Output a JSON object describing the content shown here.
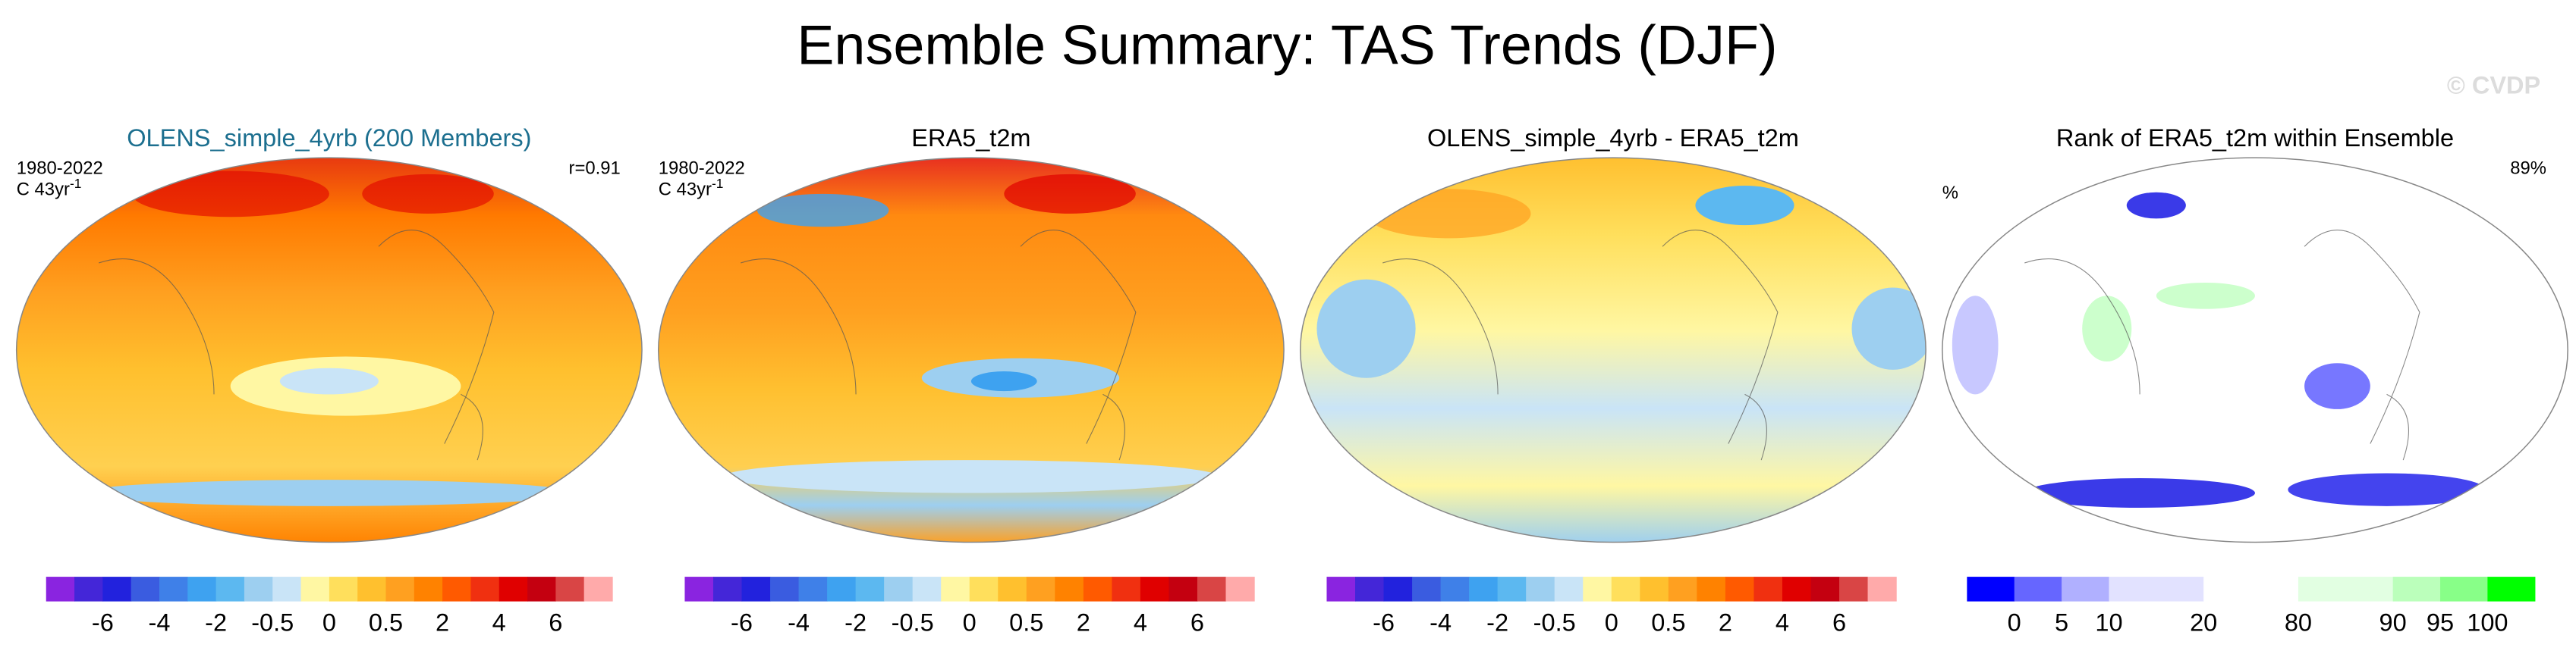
{
  "title": "Ensemble Summary: TAS Trends (DJF)",
  "watermark": "© CVDP",
  "panels": [
    {
      "title": "OLENS_simple_4yrb (200 Members)",
      "title_color": "#1c6f8f",
      "period": "1980-2022",
      "units": "C 43yr",
      "units_exponent": "-1",
      "stat": "r=0.91",
      "colorbar": {
        "colors": [
          "#8a24e0",
          "#4426d8",
          "#2222dd",
          "#3a5ce0",
          "#3f80e8",
          "#3ea2f0",
          "#5cb8f0",
          "#9dcff0",
          "#c9e4f7",
          "#fff7a3",
          "#ffdf5c",
          "#ffc02e",
          "#ffa020",
          "#ff8200",
          "#ff5a00",
          "#f03010",
          "#e00000",
          "#c40010",
          "#d94545",
          "#ffaaaa"
        ],
        "ticks": [
          -6,
          -4,
          -2,
          -0.5,
          0,
          0.5,
          2,
          4,
          6
        ]
      }
    },
    {
      "title": "ERA5_t2m",
      "period": "1980-2022",
      "units": "C 43yr",
      "units_exponent": "-1",
      "colorbar": {
        "colors": [
          "#8a24e0",
          "#4426d8",
          "#2222dd",
          "#3a5ce0",
          "#3f80e8",
          "#3ea2f0",
          "#5cb8f0",
          "#9dcff0",
          "#c9e4f7",
          "#fff7a3",
          "#ffdf5c",
          "#ffc02e",
          "#ffa020",
          "#ff8200",
          "#ff5a00",
          "#f03010",
          "#e00000",
          "#c40010",
          "#d94545",
          "#ffaaaa"
        ],
        "ticks": [
          -6,
          -4,
          -2,
          -0.5,
          0,
          0.5,
          2,
          4,
          6
        ]
      }
    },
    {
      "title": "OLENS_simple_4yrb - ERA5_t2m",
      "colorbar": {
        "colors": [
          "#8a24e0",
          "#4426d8",
          "#2222dd",
          "#3a5ce0",
          "#3f80e8",
          "#3ea2f0",
          "#5cb8f0",
          "#9dcff0",
          "#c9e4f7",
          "#fff7a3",
          "#ffdf5c",
          "#ffc02e",
          "#ffa020",
          "#ff8200",
          "#ff5a00",
          "#f03010",
          "#e00000",
          "#c40010",
          "#d94545",
          "#ffaaaa"
        ],
        "ticks": [
          -6,
          -4,
          -2,
          -0.5,
          0,
          0.5,
          2,
          4,
          6
        ]
      }
    },
    {
      "title": "Rank of ERA5_t2m within Ensemble",
      "units": "%",
      "stat": "89%",
      "colorbar": {
        "colors": [
          "#0000ff",
          "#6666ff",
          "#b0b0ff",
          "#e2e2ff",
          "#ffffff",
          "#e2ffe2",
          "#bbffbb",
          "#88ff88",
          "#00ff00"
        ],
        "ticks": [
          0,
          5,
          10,
          20,
          80,
          90,
          95,
          100
        ]
      }
    }
  ]
}
